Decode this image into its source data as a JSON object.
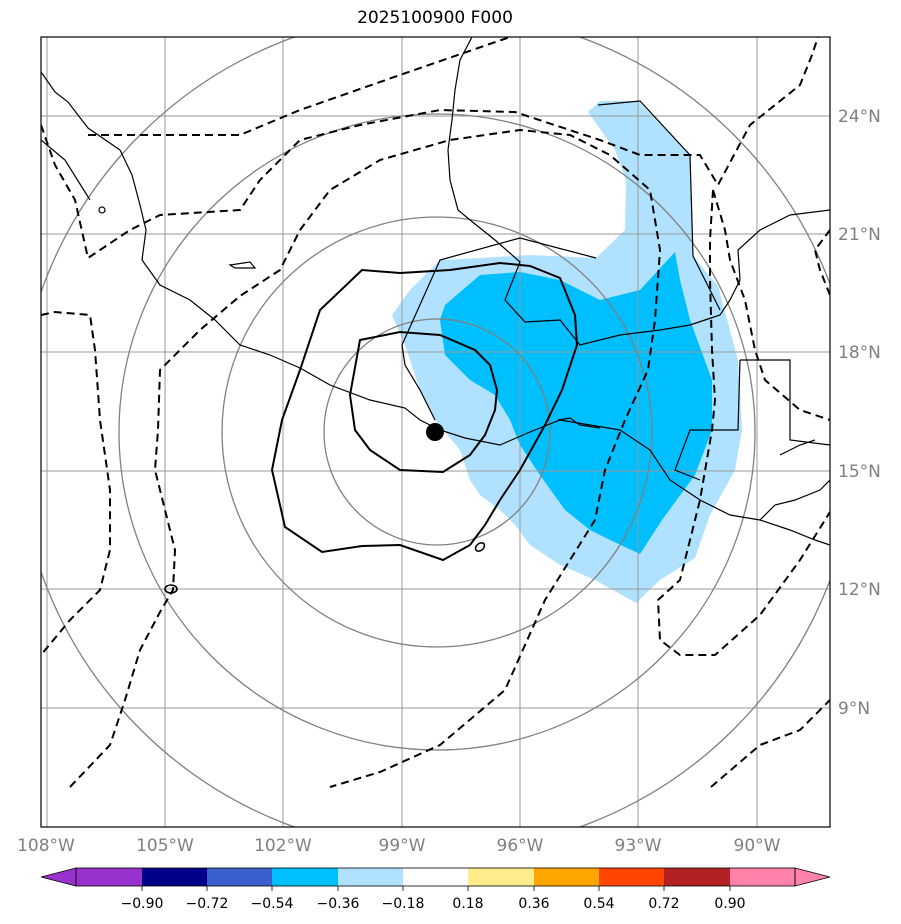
{
  "title": "2025100900 F000",
  "map": {
    "lat_labels": [
      "24°N",
      "21°N",
      "18°N",
      "15°N",
      "12°N",
      "9°N"
    ],
    "lon_labels": [
      "108°W",
      "105°W",
      "102°W",
      "99°W",
      "96°W",
      "93°W",
      "90°W"
    ],
    "lat_values": [
      24,
      21,
      18,
      15,
      12,
      9
    ],
    "lon_values": [
      -108,
      -105,
      -102,
      -99,
      -96,
      -93,
      -90
    ],
    "center_marker": {
      "lon": -98.0,
      "lat": 16.0
    }
  },
  "colorbar": {
    "ticks": [
      "−0.90",
      "−0.72",
      "−0.54",
      "−0.36",
      "−0.18",
      "0.18",
      "0.36",
      "0.54",
      "0.72",
      "0.90"
    ],
    "colors": [
      "#9932cc",
      "#00008b",
      "#3a5fcd",
      "#00bfff",
      "#b0e2ff",
      "#ffffff",
      "#ffec8b",
      "#ffa500",
      "#ff4500",
      "#b22222",
      "#ff82ab"
    ]
  },
  "colors": {
    "shade_light": "#b0e2ff",
    "shade_dark": "#00bfff",
    "grid": "#999999",
    "circles": "#808080"
  }
}
